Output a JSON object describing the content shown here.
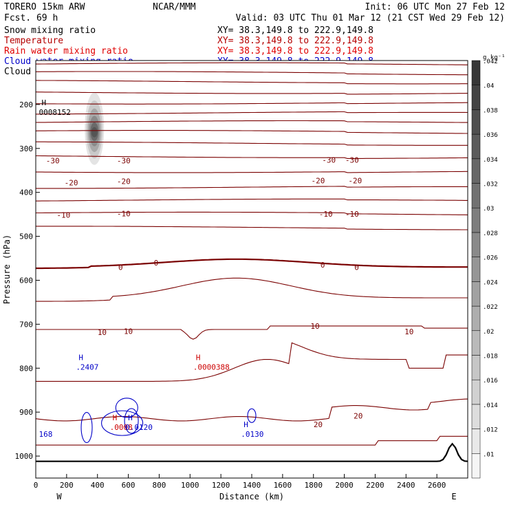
{
  "header": {
    "model": "TORERO  15km ARW",
    "forecast": "Fcst.   69 h",
    "org": "NCAR/MMM",
    "init": "Init: 06 UTC Mon 27 Feb 12",
    "valid": "Valid: 03 UTC Thu 01 Mar 12 (21 CST Wed 29 Feb 12)"
  },
  "fields": [
    {
      "label": "Snow mixing ratio",
      "xy": "",
      "color": "#000000"
    },
    {
      "label": "Temperature",
      "xy": "XY=  38.3,149.8 to 222.9,149.8",
      "color": "#b40000"
    },
    {
      "label": "Rain water mixing ratio",
      "xy": "XY=  38.3,149.8 to 222.9,149.8",
      "color": "#e00000"
    },
    {
      "label": "Cloud water mixing ratio",
      "xy": "XY=  38.3,149.8 to 222.9,149.8",
      "color": "#0000c8"
    },
    {
      "label": "Cloud ice mixing ratio",
      "xy": "XY=  38.3,149.8 to 222.9,149.8",
      "color": "#000000"
    }
  ],
  "xy_top": "XY=  38.3,149.8 to 222.9,149.8",
  "colors": {
    "temperature": "#7a0000",
    "rain": "#cc0000",
    "cloud_water": "#0000c8",
    "ink": "#000000"
  },
  "chart_data": {
    "type": "contour-cross-section",
    "xlabel": "Distance (km)",
    "ylabel": "Pressure (hPa)",
    "xlim": [
      0,
      2800
    ],
    "ylim": [
      1050,
      100
    ],
    "x_ticks": [
      0,
      200,
      400,
      600,
      800,
      1000,
      1200,
      1400,
      1600,
      1800,
      2000,
      2200,
      2400,
      2600
    ],
    "y_ticks": [
      200,
      300,
      400,
      500,
      600,
      700,
      800,
      900,
      1000
    ],
    "west_label": "W",
    "east_label": "E",
    "temperature_contours": [
      {
        "level": -30,
        "labels": [
          {
            "x": 110,
            "p": 328
          },
          {
            "x": 570,
            "p": 328
          },
          {
            "x": 1900,
            "p": 326
          },
          {
            "x": 2050,
            "p": 326
          }
        ]
      },
      {
        "level": -20,
        "labels": [
          {
            "x": 230,
            "p": 378
          },
          {
            "x": 570,
            "p": 375
          },
          {
            "x": 1830,
            "p": 373
          },
          {
            "x": 2070,
            "p": 373
          }
        ]
      },
      {
        "level": -10,
        "labels": [
          {
            "x": 180,
            "p": 451
          },
          {
            "x": 570,
            "p": 448
          },
          {
            "x": 1880,
            "p": 449
          },
          {
            "x": 2050,
            "p": 449
          }
        ]
      },
      {
        "level": 0,
        "labels": [
          {
            "x": 550,
            "p": 570
          },
          {
            "x": 780,
            "p": 560
          },
          {
            "x": 1860,
            "p": 565
          },
          {
            "x": 2080,
            "p": 570
          }
        ]
      },
      {
        "level": 10,
        "labels": [
          {
            "x": 430,
            "p": 718
          },
          {
            "x": 600,
            "p": 716
          },
          {
            "x": 1810,
            "p": 704
          },
          {
            "x": 2420,
            "p": 717
          }
        ]
      },
      {
        "level": 20,
        "labels": [
          {
            "x": 1830,
            "p": 928
          },
          {
            "x": 2090,
            "p": 908
          }
        ]
      }
    ],
    "extrema": [
      {
        "field": "cloud_ice",
        "symbol": "H",
        "value": "0008152",
        "x": 20,
        "p": 205
      },
      {
        "field": "cloud_water",
        "symbol": "H",
        "value": ".2407",
        "x": 260,
        "p": 785
      },
      {
        "field": "rain",
        "symbol": "H",
        "value": ".0000388",
        "x": 1020,
        "p": 785
      },
      {
        "field": "cloud_water",
        "symbol": "H",
        "value": ".0130",
        "x": 1330,
        "p": 937
      },
      {
        "field": "cloud_water",
        "symbol": "",
        "value": "168",
        "x": 20,
        "p": 937
      },
      {
        "field": "rain",
        "symbol": "H",
        "value": ".0008",
        "x": 480,
        "p": 922
      },
      {
        "field": "cloud_water",
        "symbol": "H",
        "value": "0.0120",
        "x": 580,
        "p": 922
      }
    ],
    "snow_max": {
      "x": 380,
      "p_center": 255,
      "p_top": 155,
      "p_bottom": 320,
      "value": 0.042
    },
    "colorbar": {
      "unit": "g kg⁻¹",
      "ticks": [
        ".01",
        ".012",
        ".014",
        ".016",
        ".018",
        ".02",
        ".022",
        ".024",
        ".026",
        ".028",
        ".03",
        ".032",
        ".034",
        ".036",
        ".038",
        ".04",
        ".042"
      ]
    }
  }
}
